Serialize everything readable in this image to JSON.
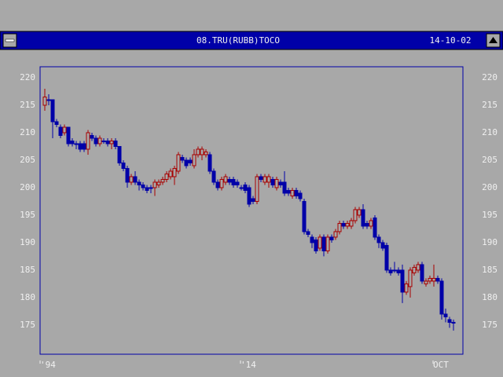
{
  "chart_data": {
    "type": "candlestick",
    "title": "08.TRU(RUBB)TOCO",
    "date": "14-10-02",
    "categories": [
      "'94",
      null,
      null,
      null,
      null,
      null,
      null,
      null,
      null,
      null,
      null,
      null,
      null,
      null,
      null,
      null,
      null,
      null,
      null,
      null,
      null,
      null,
      null,
      null,
      null,
      null,
      null,
      null,
      null,
      null,
      null,
      null,
      null,
      null,
      null,
      null,
      null,
      null,
      null,
      null,
      null,
      null,
      null,
      null,
      null,
      null,
      null,
      null,
      null,
      null,
      null,
      "'14",
      null,
      null,
      null,
      null,
      null,
      null,
      null,
      null,
      null,
      null,
      null,
      null,
      null,
      null,
      null,
      null,
      null,
      null,
      null,
      null,
      null,
      null,
      null,
      null,
      null,
      null,
      null,
      null,
      null,
      null,
      null,
      null,
      null,
      null,
      null,
      null,
      null,
      null,
      null,
      null,
      null,
      null,
      null,
      null,
      null,
      null,
      null,
      null,
      "OCT",
      null,
      null,
      null,
      null
    ],
    "open": [
      215,
      216,
      216,
      212,
      211,
      210,
      211,
      208.5,
      208,
      208,
      208,
      207,
      209.5,
      209,
      208,
      208.5,
      208.5,
      208,
      208.5,
      207.5,
      204.5,
      203.5,
      201,
      202,
      201,
      200.5,
      200,
      200,
      200,
      200.5,
      201,
      201.5,
      202,
      202,
      203,
      205.5,
      205,
      205,
      204,
      206,
      206,
      206,
      206,
      203,
      201,
      200,
      201,
      201.5,
      201.5,
      201,
      200,
      200.5,
      200,
      198,
      197.5,
      202,
      201,
      201,
      201.5,
      200,
      201,
      201,
      199.5,
      198.5,
      199.5,
      199,
      197.5,
      192,
      191,
      190.5,
      189,
      191,
      188.5,
      191,
      191,
      192,
      193.5,
      193,
      193,
      194,
      195,
      196,
      193.5,
      193,
      194.5,
      191,
      190,
      189.5,
      185,
      185,
      185,
      185,
      181,
      182,
      184.5,
      185,
      186,
      182.5,
      183,
      183,
      183.5,
      183,
      177,
      176,
      175.5
    ],
    "close": [
      216.5,
      216,
      212,
      211.5,
      209.5,
      211,
      208,
      208,
      208,
      207,
      207,
      210,
      209,
      208,
      209,
      208.5,
      208,
      208.5,
      207.5,
      204.5,
      203.5,
      201,
      202,
      201,
      200.5,
      200,
      199.5,
      200,
      201,
      201,
      201.5,
      202.5,
      203,
      203.5,
      206,
      205,
      204,
      204.5,
      206,
      207,
      207,
      206.5,
      203,
      201,
      200,
      201.5,
      202,
      201,
      200.5,
      200.5,
      200,
      199.5,
      197,
      197.5,
      202,
      201.5,
      202,
      202,
      200.5,
      201.5,
      200.5,
      199,
      199,
      199.5,
      198.5,
      198,
      192,
      191.5,
      190,
      188.5,
      191,
      188.5,
      191,
      190.5,
      192,
      193.5,
      193,
      193.5,
      194,
      196,
      196,
      193,
      193,
      194,
      191,
      190,
      189,
      185,
      184.5,
      185,
      184.5,
      181,
      182.5,
      185,
      185.5,
      186,
      183,
      183,
      183.5,
      183.5,
      183,
      177,
      176.5,
      175.5,
      175.5
    ],
    "high": [
      218,
      217,
      216,
      212.5,
      211.5,
      211.5,
      211,
      209,
      208.5,
      208.5,
      208.5,
      210.5,
      210,
      209.5,
      209.5,
      209,
      209,
      209,
      209,
      207.5,
      205,
      204,
      202.5,
      203,
      201.5,
      201,
      200.5,
      200.5,
      201.5,
      201.5,
      202,
      203,
      203.5,
      204,
      206.5,
      206,
      205.5,
      205.5,
      207,
      207.5,
      207.5,
      207,
      206.5,
      203.5,
      201.5,
      202,
      202.5,
      202,
      202,
      201.5,
      200.5,
      201,
      200.5,
      198.5,
      202.5,
      202.5,
      202.5,
      202.5,
      202,
      202,
      201.5,
      203,
      200,
      200,
      200,
      199.5,
      198,
      192.5,
      191.5,
      191,
      191.5,
      191.5,
      191.5,
      191.5,
      192.5,
      194,
      194,
      194,
      194.5,
      196.5,
      196.5,
      197,
      194,
      194.5,
      195,
      191.5,
      190.5,
      190,
      185.5,
      186.5,
      185.5,
      186,
      183,
      185.5,
      186,
      186.5,
      186.5,
      183.5,
      184,
      186,
      184,
      183.5,
      178,
      176.5,
      176
    ],
    "low": [
      214,
      215,
      209,
      211,
      209,
      209.5,
      207.5,
      207.5,
      207,
      206.5,
      206.5,
      206,
      208.5,
      207.5,
      207.5,
      208,
      207.5,
      207,
      207,
      204,
      203,
      200,
      200.5,
      200.5,
      199.5,
      199.5,
      199,
      199,
      198.5,
      200,
      200.5,
      201,
      201.5,
      200.5,
      202.5,
      204.5,
      203.5,
      204,
      203.5,
      205.5,
      205,
      205.5,
      202.5,
      200.5,
      199.5,
      199.5,
      200.5,
      200.5,
      200,
      200,
      199.5,
      199,
      196.5,
      197,
      197,
      201,
      200.5,
      200,
      200,
      199.5,
      200,
      198.5,
      198.5,
      198,
      198,
      197.5,
      191.5,
      191,
      189,
      188,
      188.5,
      187.5,
      188,
      190,
      190.5,
      191.5,
      192.5,
      192.5,
      192.5,
      193.5,
      194.5,
      192.5,
      192.5,
      192.5,
      190.5,
      189,
      188.5,
      184.5,
      184,
      184.5,
      184,
      179,
      180.5,
      180,
      184,
      184.5,
      182.5,
      182,
      182.5,
      182,
      182.5,
      176,
      175.5,
      174.5,
      174
    ],
    "up_color": "#a80000",
    "down_color": "#0000a8",
    "ylim": [
      169.7,
      222
    ],
    "yticks": [
      175,
      180,
      185,
      190,
      195,
      200,
      205,
      210,
      215,
      220
    ]
  }
}
